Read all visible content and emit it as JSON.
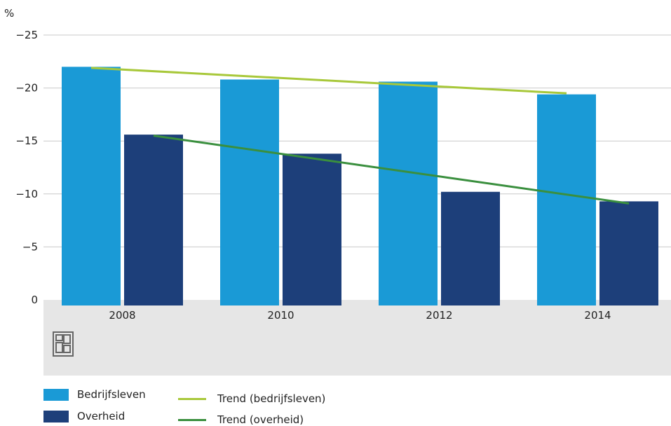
{
  "chart_data": {
    "type": "bar",
    "unit_label": "%",
    "categories": [
      "2008",
      "2010",
      "2012",
      "2014"
    ],
    "ylim": [
      0,
      -25
    ],
    "yticks": [
      0,
      -5,
      -10,
      -15,
      -20,
      -25
    ],
    "ytick_labels": [
      "0",
      "−5",
      "−10",
      "−15",
      "−20",
      "−25"
    ],
    "series": [
      {
        "name": "Bedrijfsleven",
        "values": [
          -22.0,
          -20.8,
          -20.6,
          -19.4
        ],
        "color": "#1a9ad6"
      },
      {
        "name": "Overheid",
        "values": [
          -15.6,
          -13.8,
          -10.2,
          -9.3
        ],
        "color": "#1d3f7a"
      }
    ],
    "trends": [
      {
        "name": "Trend (bedrijfsleven)",
        "start": -21.9,
        "end": -19.5,
        "color": "#a8c83a"
      },
      {
        "name": "Trend (overheid)",
        "start": -15.5,
        "end": -9.1,
        "color": "#3a8f3e"
      }
    ],
    "grid": true,
    "legend_position": "bottom-left"
  },
  "logo": "cbs-logo"
}
